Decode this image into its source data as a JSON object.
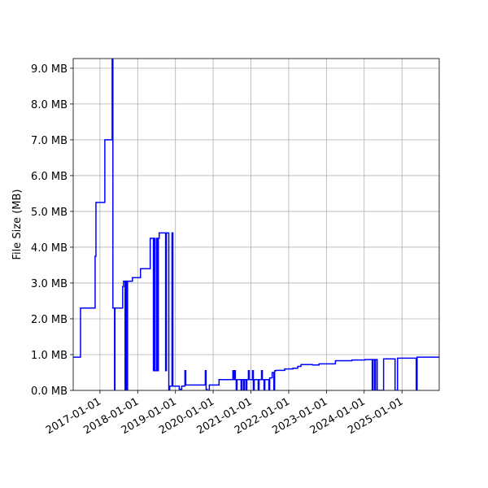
{
  "chart_data": {
    "type": "line",
    "step": true,
    "ylabel": "File Size (MB)",
    "color": "#0000ff",
    "grid": true,
    "x": [
      "2016-04-17",
      "2016-06-27",
      "2016-11-15",
      "2016-11-23",
      "2017-02-17",
      "2017-04-29",
      "2017-05-06",
      "2017-05-22",
      "2017-05-26",
      "2017-08-09",
      "2017-08-17",
      "2017-09-01",
      "2017-09-09",
      "2017-09-17",
      "2017-09-25",
      "2017-11-11",
      "2018-01-28",
      "2018-05-02",
      "2018-06-02",
      "2018-06-10",
      "2018-06-18",
      "2018-07-04",
      "2018-07-12",
      "2018-07-20",
      "2018-07-28",
      "2018-09-28",
      "2018-10-06",
      "2018-10-29",
      "2018-11-06",
      "2018-11-29",
      "2018-12-07",
      "2019-02-07",
      "2019-03-03",
      "2019-04-03",
      "2019-04-11",
      "2019-10-17",
      "2019-10-25",
      "2019-11-02",
      "2019-11-25",
      "2020-02-27",
      "2020-07-10",
      "2020-07-18",
      "2020-07-26",
      "2020-08-03",
      "2020-08-11",
      "2020-08-19",
      "2020-09-27",
      "2020-10-05",
      "2020-10-21",
      "2020-10-29",
      "2020-11-14",
      "2020-11-22",
      "2020-12-07",
      "2020-12-15",
      "2021-01-16",
      "2021-01-24",
      "2021-02-01",
      "2021-03-12",
      "2021-03-20",
      "2021-04-13",
      "2021-04-21",
      "2021-05-07",
      "2021-05-15",
      "2021-06-23",
      "2021-07-01",
      "2021-07-25",
      "2021-08-10",
      "2021-08-18",
      "2021-09-03",
      "2021-11-23",
      "2022-02-10",
      "2022-03-29",
      "2022-04-30",
      "2022-08-19",
      "2022-10-21",
      "2023-03-29",
      "2023-09-04",
      "2024-01-08",
      "2024-03-19",
      "2024-03-27",
      "2024-04-12",
      "2024-04-20",
      "2024-05-06",
      "2024-07-07",
      "2024-10-26",
      "2024-11-19",
      "2025-05-19",
      "2025-05-27",
      "2025-12-27"
    ],
    "values": [
      0.93,
      2.3,
      3.75,
      5.25,
      7.0,
      9.3,
      2.3,
      0,
      2.3,
      2.9,
      3.05,
      0,
      3.05,
      0,
      3.05,
      3.15,
      3.4,
      4.25,
      0.55,
      4.25,
      0.55,
      4.25,
      0.55,
      4.25,
      4.4,
      0.55,
      4.4,
      0,
      0.12,
      4.4,
      0.12,
      0.03,
      0.12,
      0.55,
      0.15,
      0.55,
      0.03,
      0,
      0.15,
      0.3,
      0.55,
      0.3,
      0.55,
      0.3,
      0,
      0.3,
      0,
      0.3,
      0,
      0.3,
      0,
      0.3,
      0.55,
      0.3,
      0.55,
      0,
      0.3,
      0,
      0.3,
      0.55,
      0.3,
      0,
      0.3,
      0,
      0.35,
      0.5,
      0,
      0.55,
      0.56,
      0.6,
      0.62,
      0.67,
      0.72,
      0.71,
      0.74,
      0.83,
      0.85,
      0.86,
      0,
      0.86,
      0,
      0.86,
      0,
      0.88,
      0,
      0.9,
      0,
      0.93,
      0.93
    ],
    "xlim": [
      "2016-04-17",
      "2025-12-27"
    ],
    "xticks": [
      "2017-01-01",
      "2018-01-01",
      "2019-01-01",
      "2020-01-01",
      "2021-01-01",
      "2022-01-01",
      "2023-01-01",
      "2024-01-01",
      "2025-01-01"
    ],
    "ylim": [
      0,
      9.27
    ],
    "yticks": [
      {
        "value": 0,
        "label": "0.0 MB"
      },
      {
        "value": 1,
        "label": "1.0 MB"
      },
      {
        "value": 2,
        "label": "2.0 MB"
      },
      {
        "value": 3,
        "label": "3.0 MB"
      },
      {
        "value": 4,
        "label": "4.0 MB"
      },
      {
        "value": 5,
        "label": "5.0 MB"
      },
      {
        "value": 6,
        "label": "6.0 MB"
      },
      {
        "value": 7,
        "label": "7.0 MB"
      },
      {
        "value": 8,
        "label": "8.0 MB"
      },
      {
        "value": 9,
        "label": "9.0 MB"
      }
    ]
  }
}
